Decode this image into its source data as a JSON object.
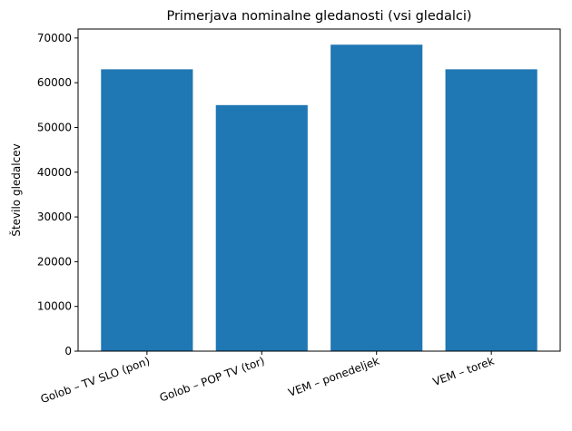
{
  "chart_data": {
    "type": "bar",
    "title": "Primerjava nominalne gledanosti (vsi gledalci)",
    "xlabel": "",
    "ylabel": "Število gledalcev",
    "categories": [
      "Golob – TV SLO (pon)",
      "Golob – POP TV (tor)",
      "VEM – ponedeljek",
      "VEM – torek"
    ],
    "values": [
      63000,
      55000,
      68500,
      63000
    ],
    "ylim": [
      0,
      72000
    ],
    "yticks": [
      0,
      10000,
      20000,
      30000,
      40000,
      50000,
      60000,
      70000
    ],
    "ytick_labels": [
      "0",
      "10000",
      "20000",
      "30000",
      "40000",
      "50000",
      "60000",
      "70000"
    ],
    "bar_color": "#1f77b4",
    "grid": false
  }
}
